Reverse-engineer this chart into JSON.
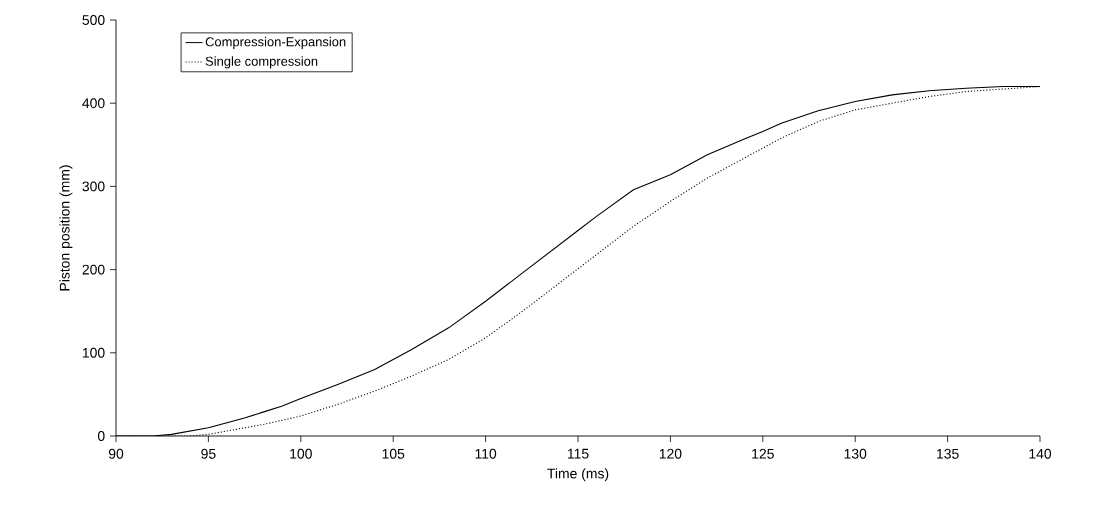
{
  "chart_data": {
    "type": "line",
    "xlabel": "Time (ms)",
    "ylabel": "Piston position (mm)",
    "xlim": [
      90,
      140
    ],
    "xticks": [
      90,
      95,
      100,
      105,
      110,
      115,
      120,
      125,
      130,
      135,
      140
    ],
    "ylim": [
      0,
      500
    ],
    "yticks": [
      0,
      100,
      200,
      300,
      400,
      500
    ],
    "legend": "top left",
    "grid": false,
    "marker": "none",
    "series": [
      {
        "name": "Compression-Expansion",
        "color": "#000000",
        "line_style": "solid",
        "x": [
          90,
          92,
          93,
          94,
          95,
          96,
          97,
          98,
          99,
          100,
          102,
          104,
          105,
          106,
          108,
          110,
          112,
          114,
          115,
          116,
          118,
          120,
          122,
          124,
          125,
          126,
          128,
          130,
          132,
          134,
          136,
          138,
          140
        ],
        "values": [
          0,
          0,
          2,
          6,
          10,
          16,
          22,
          29,
          36,
          45,
          62,
          80,
          92,
          104,
          130,
          162,
          196,
          230,
          247,
          264,
          296,
          314,
          338,
          357,
          366,
          376,
          391,
          402,
          410,
          415,
          418,
          420,
          420
        ]
      },
      {
        "name": "Single compression",
        "color": "#000000",
        "line_style": "dotted",
        "x": [
          90,
          94,
          95,
          96,
          98,
          100,
          102,
          104,
          106,
          108,
          110,
          112,
          114,
          116,
          118,
          120,
          122,
          124,
          126,
          128,
          130,
          132,
          134,
          136,
          138,
          140
        ],
        "values": [
          0,
          0,
          2,
          6,
          14,
          24,
          38,
          54,
          72,
          92,
          118,
          150,
          184,
          218,
          252,
          282,
          310,
          334,
          358,
          378,
          392,
          400,
          408,
          414,
          417,
          420
        ]
      }
    ]
  }
}
